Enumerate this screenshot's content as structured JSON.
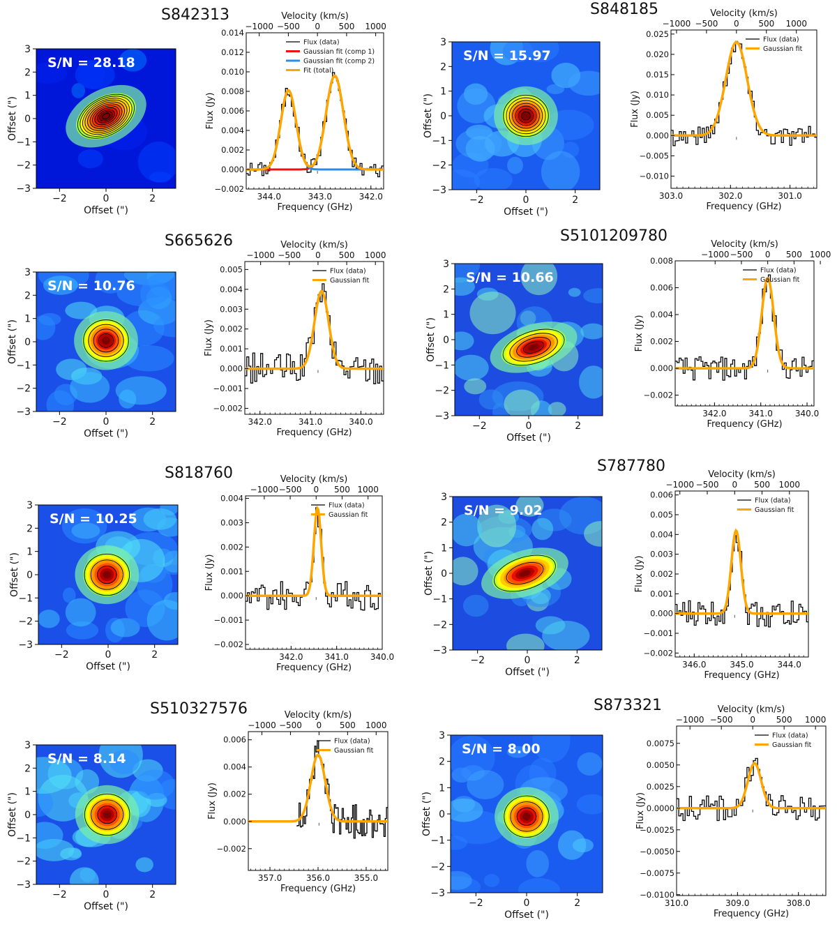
{
  "axis_labels": {
    "offset_x": "Offset (\")",
    "offset_y": "Offset (\")",
    "flux": "Flux (Jy)",
    "frequency": "Frequency (GHz)",
    "velocity": "Velocity (km/s)"
  },
  "legend_labels": {
    "flux": "Flux (data)",
    "gauss": "Gaussian fit",
    "comp1": "Gaussian fit (comp 1)",
    "comp2": "Gaussian fit (comp 2)",
    "total": "Fit (total)"
  },
  "colors": {
    "data": "#000000",
    "fit": "#ffa500",
    "comp1": "#ee1111",
    "comp2": "#2a8be8"
  },
  "chart_data": [
    {
      "type": "image+line",
      "source": "S842313",
      "snr_label": "S/N = 28.18",
      "map": {
        "xlim": [
          -3,
          3
        ],
        "ylim": [
          -3,
          3
        ],
        "style": "bright",
        "peak": [
          0.0,
          0.1
        ],
        "contours": 11,
        "xticks": [
          -2,
          0,
          2
        ],
        "yticks": [
          -3,
          -2,
          -1,
          0,
          1,
          2,
          3
        ]
      },
      "spectrum": {
        "xlim": [
          344.45,
          341.75
        ],
        "ylim": [
          -0.002,
          0.014
        ],
        "xticks": [
          "344.0",
          "343.0",
          "342.0"
        ],
        "xtick_values": [
          344.0,
          343.0,
          342.0
        ],
        "yticks": [
          "−0.002",
          "0.000",
          "0.002",
          "0.004",
          "0.006",
          "0.008",
          "0.010",
          "0.012",
          "0.014"
        ],
        "vticks": [
          "−1000",
          "−500",
          "0",
          "500",
          "1000"
        ],
        "vtick_values": [
          -1000,
          -500,
          0,
          500,
          1000
        ],
        "center_freq": 343.05,
        "components": [
          {
            "amp": 0.0081,
            "center": 343.62,
            "sigma": 0.15
          },
          {
            "amp": 0.0096,
            "center": 342.71,
            "sigma": 0.17
          }
        ],
        "noise": 0.0008
      }
    },
    {
      "type": "image+line",
      "source": "S848185",
      "snr_label": "S/N = 15.97",
      "map": {
        "xlim": [
          -3,
          3
        ],
        "ylim": [
          -3,
          3
        ],
        "style": "medium",
        "peak": [
          0.0,
          0.0
        ],
        "contours": 7,
        "xticks": [
          -2,
          0,
          2
        ],
        "yticks": [
          -3,
          -2,
          -1,
          0,
          1,
          2,
          3
        ]
      },
      "spectrum": {
        "xlim": [
          303.0,
          300.55
        ],
        "ylim": [
          -0.013,
          0.026
        ],
        "xticks": [
          "303.0",
          "302.0",
          "301.0"
        ],
        "xtick_values": [
          303.0,
          302.0,
          301.0
        ],
        "yticks": [
          "−0.010",
          "−0.005",
          "0.000",
          "0.005",
          "0.010",
          "0.015",
          "0.020",
          "0.025"
        ],
        "vticks": [
          "−1000",
          "−500",
          "0",
          "500",
          "1000"
        ],
        "vtick_values": [
          -1000,
          -500,
          0,
          500,
          1000
        ],
        "center_freq": 301.9,
        "components": [
          {
            "amp": 0.023,
            "center": 301.9,
            "sigma": 0.18
          }
        ],
        "noise": 0.0025
      }
    },
    {
      "type": "image+line",
      "source": "S665626",
      "snr_label": "S/N = 10.76",
      "map": {
        "xlim": [
          -3,
          3
        ],
        "ylim": [
          -3,
          3
        ],
        "style": "cyan",
        "peak": [
          0.0,
          0.05
        ],
        "contours": 4,
        "xticks": [
          -2,
          0,
          2
        ],
        "yticks": [
          -3,
          -2,
          -1,
          0,
          1,
          2,
          3
        ]
      },
      "spectrum": {
        "xlim": [
          342.3,
          339.55
        ],
        "ylim": [
          -0.0023,
          0.0054
        ],
        "xticks": [
          "342.0",
          "341.0",
          "340.0"
        ],
        "xtick_values": [
          342.0,
          341.0,
          340.0
        ],
        "yticks": [
          "−0.002",
          "−0.001",
          "0.000",
          "0.001",
          "0.002",
          "0.003",
          "0.004",
          "0.005"
        ],
        "vticks": [
          "−1000",
          "−500",
          "0",
          "500",
          "1000"
        ],
        "vtick_values": [
          -1000,
          -500,
          0,
          500,
          1000
        ],
        "center_freq": 340.85,
        "components": [
          {
            "amp": 0.0039,
            "center": 340.78,
            "sigma": 0.14
          }
        ],
        "noise": 0.0008
      }
    },
    {
      "type": "image+line",
      "source": "S5101209780",
      "snr_label": "S/N = 10.66",
      "map": {
        "xlim": [
          -3,
          3
        ],
        "ylim": [
          -3,
          3
        ],
        "style": "diffuse",
        "peak": [
          0.2,
          -0.3
        ],
        "contours": 4,
        "xticks": [
          -2,
          0,
          2
        ],
        "yticks": [
          -3,
          -2,
          -1,
          0,
          1,
          2,
          3
        ]
      },
      "spectrum": {
        "xlim": [
          342.85,
          339.85
        ],
        "ylim": [
          -0.0028,
          0.008
        ],
        "xticks": [
          "342.0",
          "341.0",
          "340.0"
        ],
        "xtick_values": [
          342.0,
          341.0,
          340.0
        ],
        "yticks": [
          "−0.002",
          "0.000",
          "0.002",
          "0.004",
          "0.006",
          "0.008"
        ],
        "vticks": [
          "−1000",
          "−500",
          "0",
          "500",
          "1000"
        ],
        "vtick_values": [
          -1000,
          -500,
          0,
          500,
          1000
        ],
        "center_freq": 340.85,
        "components": [
          {
            "amp": 0.0067,
            "center": 340.85,
            "sigma": 0.13
          }
        ],
        "noise": 0.0009
      }
    },
    {
      "type": "image+line",
      "source": "S818760",
      "snr_label": "S/N = 10.25",
      "map": {
        "xlim": [
          -3,
          3
        ],
        "ylim": [
          -3,
          3
        ],
        "style": "cyan",
        "peak": [
          -0.05,
          0.0
        ],
        "contours": 3,
        "xticks": [
          -2,
          0,
          2
        ],
        "yticks": [
          -3,
          -2,
          -1,
          0,
          1,
          2,
          3
        ]
      },
      "spectrum": {
        "xlim": [
          343.0,
          340.0
        ],
        "ylim": [
          -0.0022,
          0.0041
        ],
        "xticks": [
          "342.0",
          "341.0",
          "340.0"
        ],
        "xtick_values": [
          342.0,
          341.0,
          340.0
        ],
        "yticks": [
          "−0.002",
          "−0.001",
          "0.000",
          "0.001",
          "0.002",
          "0.003",
          "0.004"
        ],
        "vticks": [
          "−1000",
          "−500",
          "0",
          "500",
          "1000"
        ],
        "vtick_values": [
          -1000,
          -500,
          0,
          500,
          1000
        ],
        "center_freq": 341.45,
        "components": [
          {
            "amp": 0.0036,
            "center": 341.42,
            "sigma": 0.08
          }
        ],
        "noise": 0.0006
      }
    },
    {
      "type": "image+line",
      "source": "S787780",
      "snr_label": "S/N = 9.02",
      "map": {
        "xlim": [
          -3,
          3
        ],
        "ylim": [
          -3,
          3
        ],
        "style": "diffuse",
        "peak": [
          -0.1,
          0.0
        ],
        "contours": 2,
        "xticks": [
          -2,
          0,
          2
        ],
        "yticks": [
          -3,
          -2,
          -1,
          0,
          1,
          2,
          3
        ]
      },
      "spectrum": {
        "xlim": [
          346.4,
          343.6
        ],
        "ylim": [
          -0.0022,
          0.0062
        ],
        "xticks": [
          "346.0",
          "345.0",
          "344.0"
        ],
        "xtick_values": [
          346.0,
          345.0,
          344.0
        ],
        "yticks": [
          "−0.002",
          "−0.001",
          "0.000",
          "0.001",
          "0.002",
          "0.003",
          "0.004",
          "0.005",
          "0.006"
        ],
        "vticks": [
          "−1000",
          "−500",
          "0",
          "500",
          "1000"
        ],
        "vtick_values": [
          -1000,
          -500,
          0,
          500,
          1000
        ],
        "center_freq": 345.15,
        "components": [
          {
            "amp": 0.0042,
            "center": 345.12,
            "sigma": 0.1
          }
        ],
        "noise": 0.0007
      }
    },
    {
      "type": "image+line",
      "source": "S510327576",
      "snr_label": "S/N = 8.14",
      "map": {
        "xlim": [
          -3,
          3
        ],
        "ylim": [
          -3,
          3
        ],
        "style": "cyan",
        "peak": [
          0.05,
          0.0
        ],
        "contours": 3,
        "xticks": [
          -2,
          0,
          2
        ],
        "yticks": [
          -3,
          -2,
          -1,
          0,
          1,
          2,
          3
        ]
      },
      "spectrum": {
        "xlim": [
          357.45,
          354.55
        ],
        "ylim": [
          -0.0036,
          0.0066
        ],
        "xticks": [
          "357.0",
          "356.0",
          "355.0"
        ],
        "xtick_values": [
          357.0,
          356.0,
          355.0
        ],
        "yticks": [
          "−0.002",
          "0.000",
          "0.002",
          "0.004",
          "0.006"
        ],
        "vticks": [
          "−1000",
          "−500",
          "0",
          "500",
          "1000"
        ],
        "vtick_values": [
          -1000,
          -500,
          0,
          500,
          1000
        ],
        "center_freq": 355.98,
        "data_range": [
          356.45,
          354.55
        ],
        "components": [
          {
            "amp": 0.0049,
            "center": 356.0,
            "sigma": 0.15
          }
        ],
        "noise": 0.0013
      }
    },
    {
      "type": "image+line",
      "source": "S873321",
      "snr_label": "S/N = 8.00",
      "map": {
        "xlim": [
          -3,
          3
        ],
        "ylim": [
          -3,
          3
        ],
        "style": "medium",
        "peak": [
          0.0,
          -0.1
        ],
        "contours": 3,
        "xticks": [
          -2,
          0,
          2
        ],
        "yticks": [
          -3,
          -2,
          -1,
          0,
          1,
          2,
          3
        ]
      },
      "spectrum": {
        "xlim": [
          310.0,
          307.55
        ],
        "ylim": [
          -0.0101,
          0.0095
        ],
        "xticks": [
          "310.0",
          "309.0",
          "308.0"
        ],
        "xtick_values": [
          310.0,
          309.0,
          308.0
        ],
        "yticks": [
          "−0.0100",
          "−0.0075",
          "−0.0050",
          "−0.0025",
          "0.0000",
          "0.0025",
          "0.0050",
          "0.0075"
        ],
        "vticks": [
          "−1000",
          "−500",
          "0",
          "500",
          "1000"
        ],
        "vtick_values": [
          -1000,
          -500,
          0,
          500,
          1000
        ],
        "center_freq": 308.75,
        "components": [
          {
            "amp": 0.0052,
            "center": 308.72,
            "sigma": 0.11
          }
        ],
        "noise": 0.0015
      }
    }
  ]
}
